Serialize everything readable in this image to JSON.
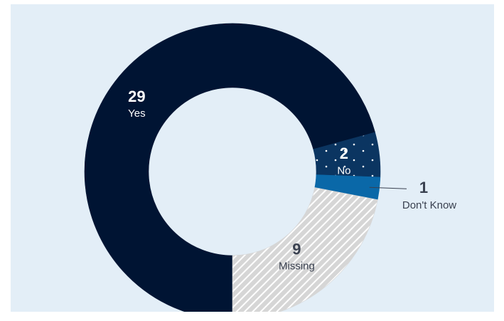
{
  "chart_data": {
    "type": "donut",
    "categories": [
      "Yes",
      "No",
      "Don't Know",
      "Missing"
    ],
    "values": [
      29,
      2,
      1,
      9
    ],
    "colors": [
      "#001433",
      "#0b3561",
      "#0a68a8",
      "#d6d6d6"
    ]
  }
}
